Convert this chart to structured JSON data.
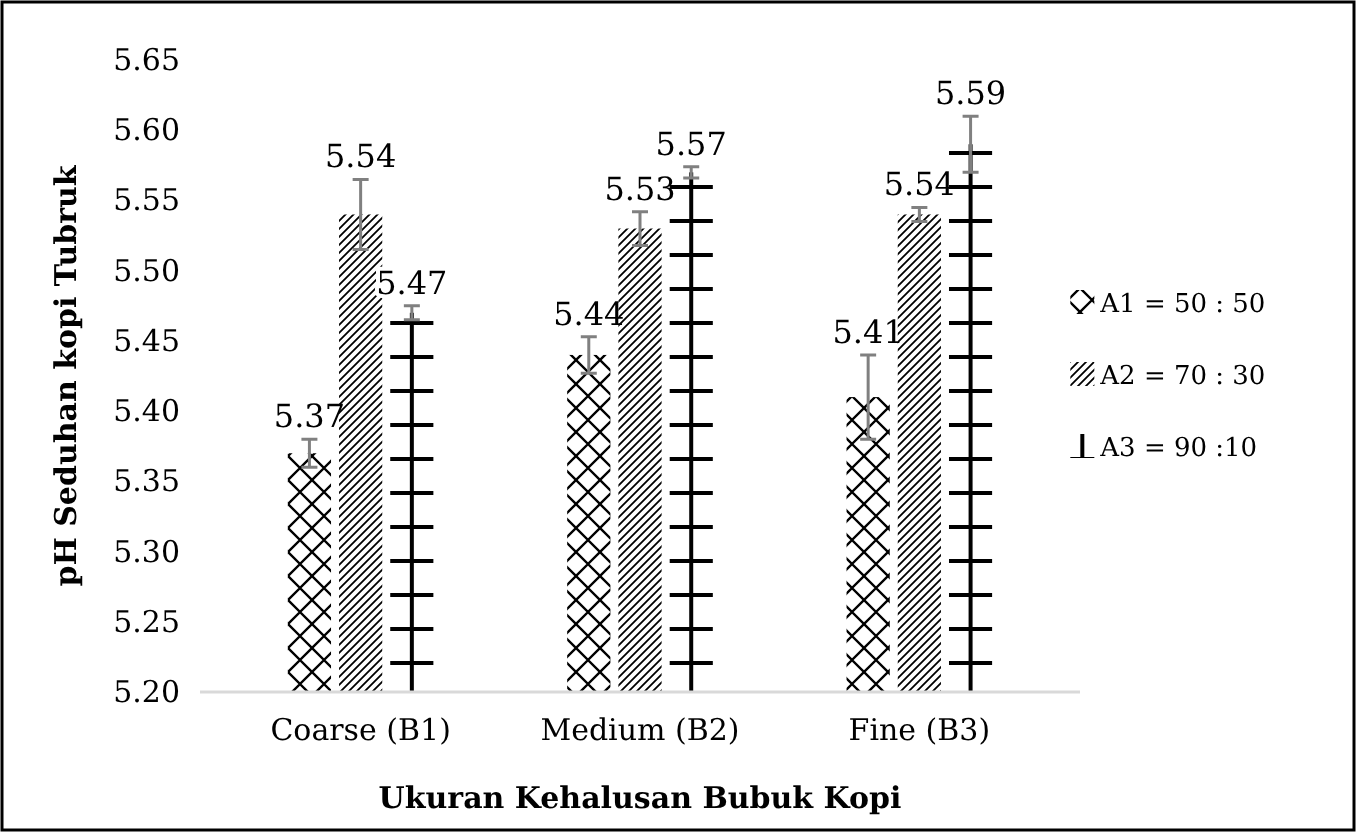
{
  "chart_data": {
    "type": "bar",
    "xlabel": "Ukuran Kehalusan Bubuk Kopi",
    "ylabel": "pH Seduhan kopi Tubruk",
    "categories": [
      "Coarse (B1)",
      "Medium (B2)",
      "Fine (B3)"
    ],
    "series": [
      {
        "name": "A1 = 50 : 50",
        "color": "#000000",
        "values": [
          5.37,
          5.44,
          5.41
        ],
        "errors": [
          0.01,
          0.013,
          0.03
        ]
      },
      {
        "name": "A2 = 70 : 30",
        "color": "#000000",
        "values": [
          5.54,
          5.53,
          5.54
        ],
        "errors": [
          0.025,
          0.012,
          0.005
        ]
      },
      {
        "name": "A3 = 90 :10",
        "color": "#000000",
        "values": [
          5.47,
          5.57,
          5.59
        ],
        "errors": [
          0.005,
          0.004,
          0.02
        ]
      }
    ],
    "ylim": [
      5.2,
      5.65
    ],
    "yticks": [
      {
        "value": 5.2,
        "label": "5.20"
      },
      {
        "value": 5.25,
        "label": "5.25"
      },
      {
        "value": 5.3,
        "label": "5.30"
      },
      {
        "value": 5.35,
        "label": "5.35"
      },
      {
        "value": 5.4,
        "label": "5.40"
      },
      {
        "value": 5.45,
        "label": "5.45"
      },
      {
        "value": 5.5,
        "label": "5.50"
      },
      {
        "value": 5.55,
        "label": "5.55"
      },
      {
        "value": 5.6,
        "label": "5.60"
      },
      {
        "value": 5.65,
        "label": "5.65"
      }
    ],
    "grid": false,
    "legend": "right",
    "data_labels": true
  }
}
